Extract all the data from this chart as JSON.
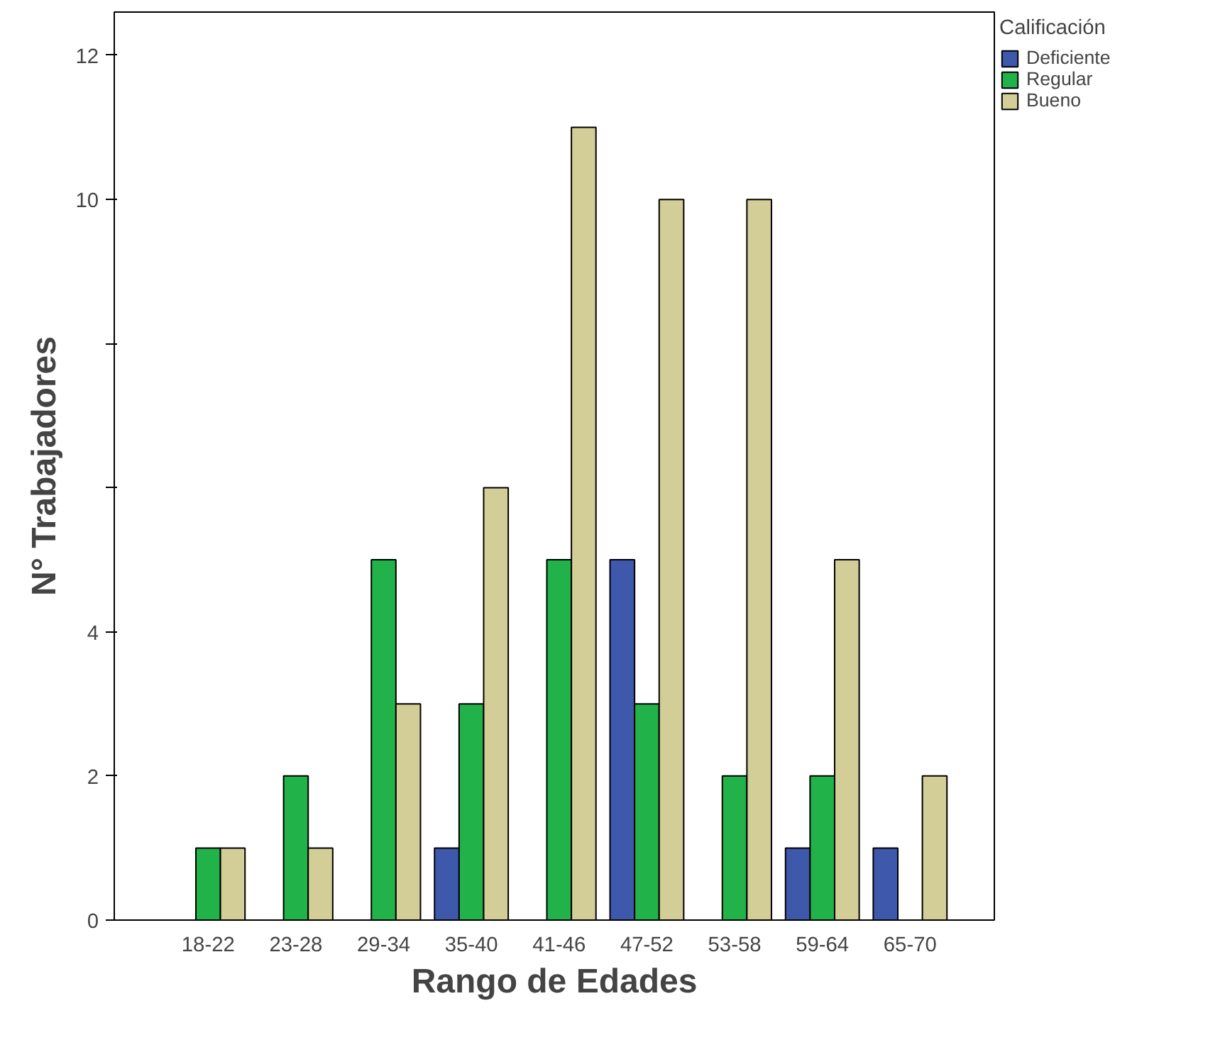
{
  "chart_data": {
    "type": "bar",
    "xlabel": "Rango de Edades",
    "ylabel": "N° Trabajadores",
    "legend_title": "Calificación",
    "categories": [
      "18-22",
      "23-28",
      "29-34",
      "35-40",
      "41-46",
      "47-52",
      "53-58",
      "59-64",
      "65-70"
    ],
    "series": [
      {
        "name": "Deficiente",
        "color": "#3e58ac",
        "values": [
          null,
          null,
          null,
          1,
          null,
          5,
          null,
          1,
          1
        ]
      },
      {
        "name": "Regular",
        "color": "#21b24a",
        "values": [
          1,
          2,
          5,
          3,
          5,
          3,
          2,
          2,
          null
        ]
      },
      {
        "name": "Bueno",
        "color": "#d3ce97",
        "values": [
          1,
          1,
          3,
          6,
          11,
          10,
          10,
          5,
          2
        ]
      }
    ],
    "ylim": [
      0,
      12.6
    ],
    "yticks": [
      0,
      2,
      4,
      {
        "value": 6,
        "label": null
      },
      {
        "value": 8,
        "label": null
      },
      10,
      12
    ],
    "grid": false,
    "legend": "right"
  }
}
